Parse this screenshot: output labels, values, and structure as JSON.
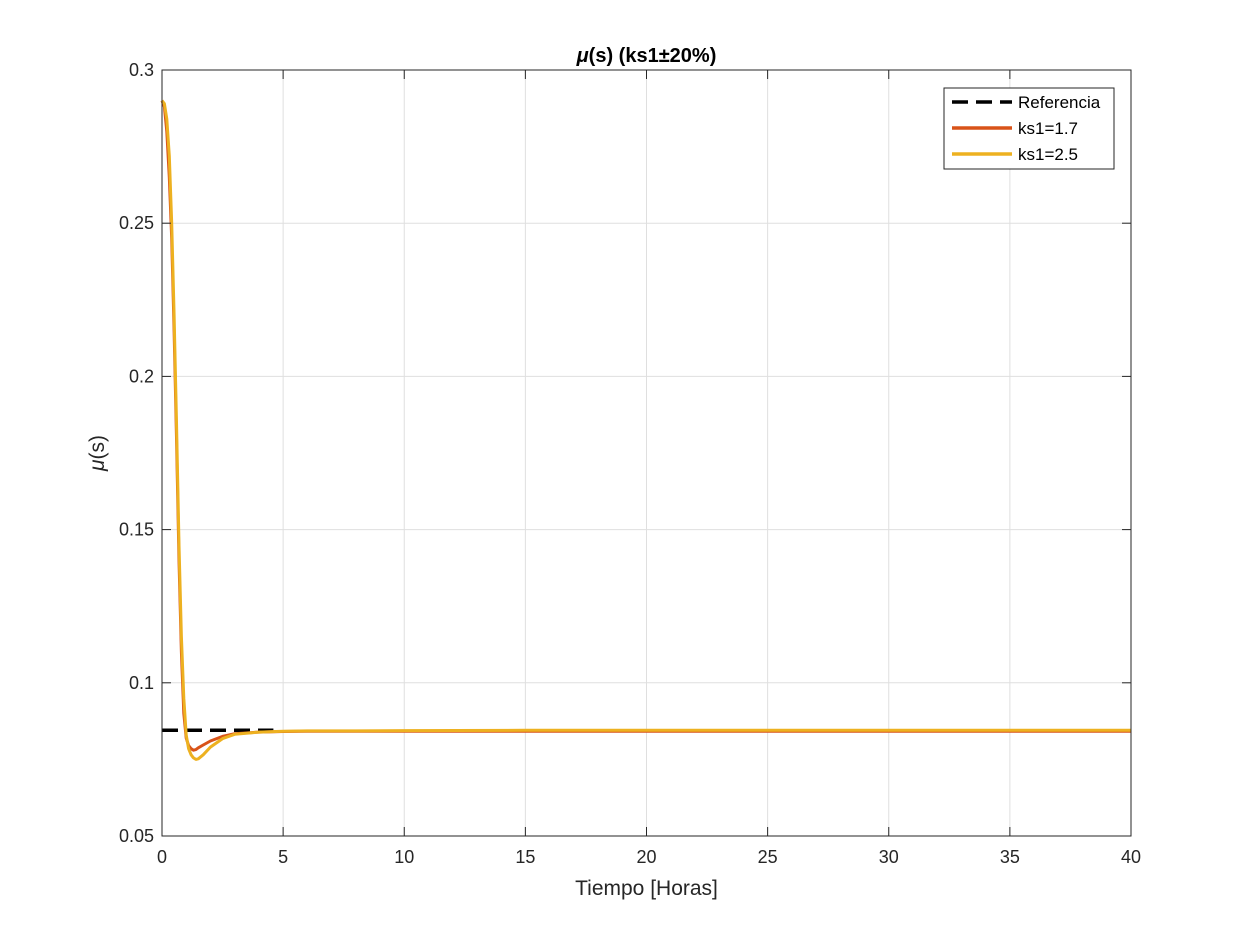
{
  "chart_data": {
    "type": "line",
    "title": {
      "symbol": "μ",
      "rest": "(s) (ks1±20%)"
    },
    "xlabel": "Tiempo [Horas]",
    "ylabel": {
      "symbol": "μ",
      "rest": "(s)"
    },
    "xlim": [
      0,
      40
    ],
    "ylim": [
      0.05,
      0.3
    ],
    "xticks": [
      0,
      5,
      10,
      15,
      20,
      25,
      30,
      35,
      40
    ],
    "xtick_labels": [
      "0",
      "5",
      "10",
      "15",
      "20",
      "25",
      "30",
      "35",
      "40"
    ],
    "yticks": [
      0.05,
      0.1,
      0.15,
      0.2,
      0.25,
      0.3
    ],
    "ytick_labels": [
      "0.05",
      "0.1",
      "0.15",
      "0.2",
      "0.25",
      "0.3"
    ],
    "grid": true,
    "legend_position": "top-right",
    "series": [
      {
        "name": "Referencia",
        "color": "#000000",
        "style": "dashed",
        "x": [
          0,
          4.6
        ],
        "y": [
          0.0845,
          0.0845
        ]
      },
      {
        "name": "ks1=1.7",
        "color": "#D95319",
        "style": "solid",
        "x": [
          0,
          0.1,
          0.2,
          0.3,
          0.4,
          0.5,
          0.6,
          0.7,
          0.8,
          0.9,
          1.0,
          1.1,
          1.2,
          1.3,
          1.4,
          1.5,
          1.7,
          2.0,
          2.5,
          3.0,
          4.0,
          5.0,
          6.0,
          8.0,
          10,
          15,
          20,
          25,
          30,
          35,
          40
        ],
        "y": [
          0.29,
          0.288,
          0.28,
          0.265,
          0.245,
          0.215,
          0.18,
          0.14,
          0.11,
          0.09,
          0.082,
          0.0795,
          0.0785,
          0.078,
          0.0782,
          0.0788,
          0.0797,
          0.081,
          0.0825,
          0.0834,
          0.0839,
          0.0841,
          0.0842,
          0.0842,
          0.0842,
          0.0842,
          0.0842,
          0.0842,
          0.0842,
          0.0842,
          0.0842
        ]
      },
      {
        "name": "ks1=2.5",
        "color": "#EDB120",
        "style": "solid",
        "x": [
          0,
          0.1,
          0.2,
          0.3,
          0.4,
          0.5,
          0.6,
          0.7,
          0.8,
          0.9,
          1.0,
          1.1,
          1.2,
          1.3,
          1.4,
          1.5,
          1.7,
          2.0,
          2.5,
          3.0,
          4.0,
          5.0,
          6.0,
          8.0,
          10,
          15,
          20,
          25,
          30,
          35,
          40
        ],
        "y": [
          0.29,
          0.289,
          0.284,
          0.272,
          0.25,
          0.22,
          0.185,
          0.145,
          0.115,
          0.095,
          0.083,
          0.0785,
          0.0765,
          0.0755,
          0.075,
          0.0752,
          0.0765,
          0.079,
          0.0818,
          0.0832,
          0.0839,
          0.0842,
          0.0843,
          0.0843,
          0.0844,
          0.0845,
          0.0845,
          0.0845,
          0.0845,
          0.0845,
          0.0845
        ]
      }
    ]
  }
}
